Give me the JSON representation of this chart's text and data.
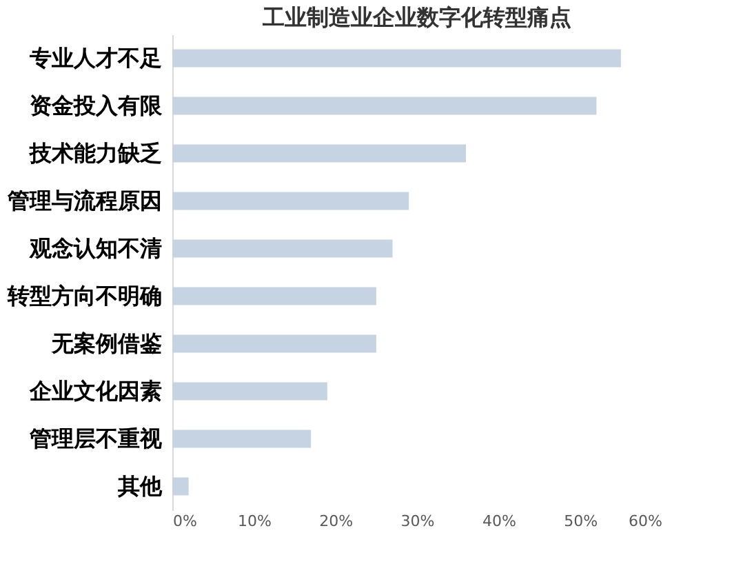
{
  "chart_data": {
    "type": "bar",
    "orientation": "horizontal",
    "title": "工业制造业企业数字化转型痛点",
    "categories": [
      "专业人才不足",
      "资金投入有限",
      "技术能力缺乏",
      "管理与流程原因",
      "观念认知不清",
      "转型方向不明确",
      "无案例借鉴",
      "企业文化因素",
      "管理层不重视",
      "其他"
    ],
    "values": [
      55,
      52,
      36,
      29,
      27,
      25,
      25,
      19,
      17,
      2
    ],
    "color": "#c5d3e3",
    "xlim": [
      0,
      60
    ],
    "xticks": [
      {
        "value": 0,
        "label": "0%"
      },
      {
        "value": 10,
        "label": "10%"
      },
      {
        "value": 20,
        "label": "20%"
      },
      {
        "value": 30,
        "label": "30%"
      },
      {
        "value": 40,
        "label": "40%"
      },
      {
        "value": 50,
        "label": "50%"
      },
      {
        "value": 60,
        "label": "60%"
      }
    ],
    "grid": false
  }
}
